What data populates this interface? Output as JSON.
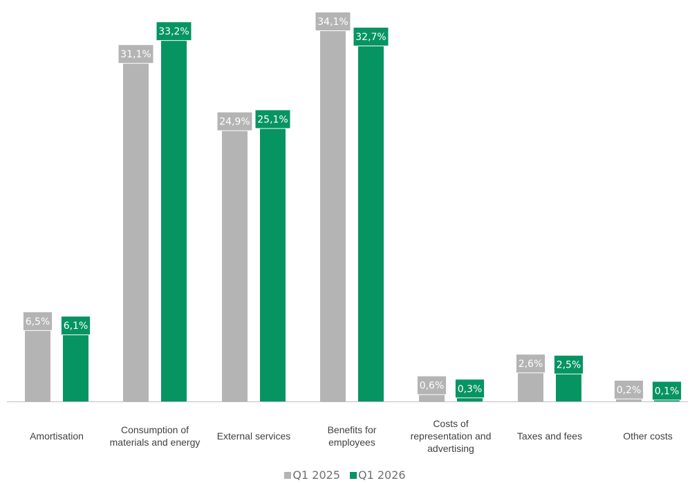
{
  "chart_data": {
    "type": "bar",
    "categories": [
      [
        "Amortisation"
      ],
      [
        "Consumption of",
        "materials and energy"
      ],
      [
        "External services"
      ],
      [
        "Benefits for",
        "employees"
      ],
      [
        "Costs of",
        "representation and",
        "advertising"
      ],
      [
        "Taxes and fees"
      ],
      [
        "Other costs"
      ]
    ],
    "series": [
      {
        "name": "Q1 2025",
        "color": "#b4b4b4",
        "values": [
          6.5,
          31.1,
          24.9,
          34.1,
          0.6,
          2.6,
          0.2
        ],
        "labels": [
          "6,5%",
          "31,1%",
          "24,9%",
          "34,1%",
          "0,6%",
          "2,6%",
          "0,2%"
        ]
      },
      {
        "name": "Q1 2026",
        "color": "#069462",
        "values": [
          6.1,
          33.2,
          25.1,
          32.7,
          0.3,
          2.5,
          0.1
        ],
        "labels": [
          "6,1%",
          "33,2%",
          "25,1%",
          "32,7%",
          "0,3%",
          "2,5%",
          "0,1%"
        ]
      }
    ],
    "ylim": [
      0,
      34.1
    ],
    "grid": false,
    "legend": "bottom-center"
  }
}
